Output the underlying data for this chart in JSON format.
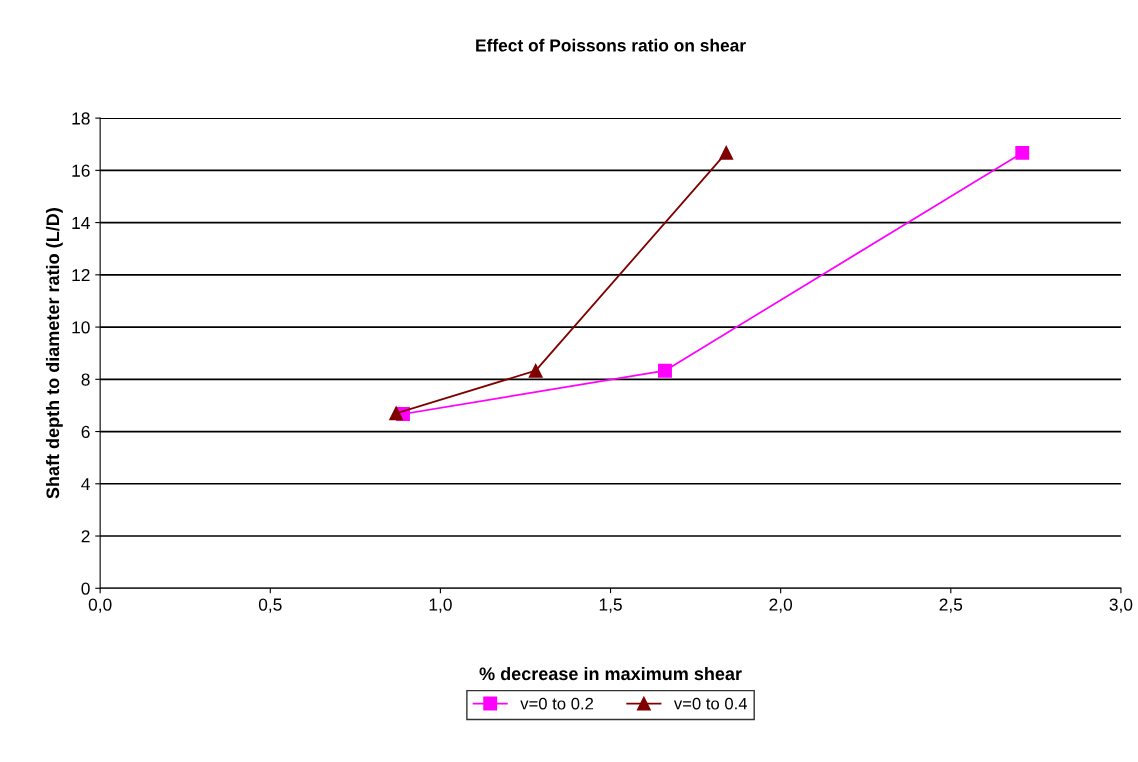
{
  "chart_data": {
    "type": "line",
    "title": "Effect of Poissons ratio on shear",
    "xlabel": "% decrease in maximum shear",
    "ylabel": "Shaft depth to diameter ratio (L/D)",
    "series": [
      {
        "name": "v=0 to 0.2",
        "color": "#ff00ff",
        "marker": "square",
        "x": [
          0.89,
          1.66,
          2.71
        ],
        "values": [
          6.67,
          8.33,
          16.67
        ]
      },
      {
        "name": "v=0 to 0.4",
        "color": "#800000",
        "marker": "triangle",
        "x": [
          0.87,
          1.28,
          1.84
        ],
        "values": [
          6.7,
          8.33,
          16.67
        ]
      }
    ],
    "xlim": [
      0,
      3
    ],
    "xticks": [
      {
        "value": 0,
        "label": "0,0"
      },
      {
        "value": 0.5,
        "label": "0,5"
      },
      {
        "value": 1,
        "label": "1,0"
      },
      {
        "value": 1.5,
        "label": "1,5"
      },
      {
        "value": 2,
        "label": "2,0"
      },
      {
        "value": 2.5,
        "label": "2,5"
      },
      {
        "value": 3,
        "label": "3,0"
      }
    ],
    "ylim": [
      0,
      18
    ],
    "yticks": [
      0,
      2,
      4,
      6,
      8,
      10,
      12,
      14,
      16,
      18
    ],
    "grid": "y",
    "legend": "bottom"
  }
}
